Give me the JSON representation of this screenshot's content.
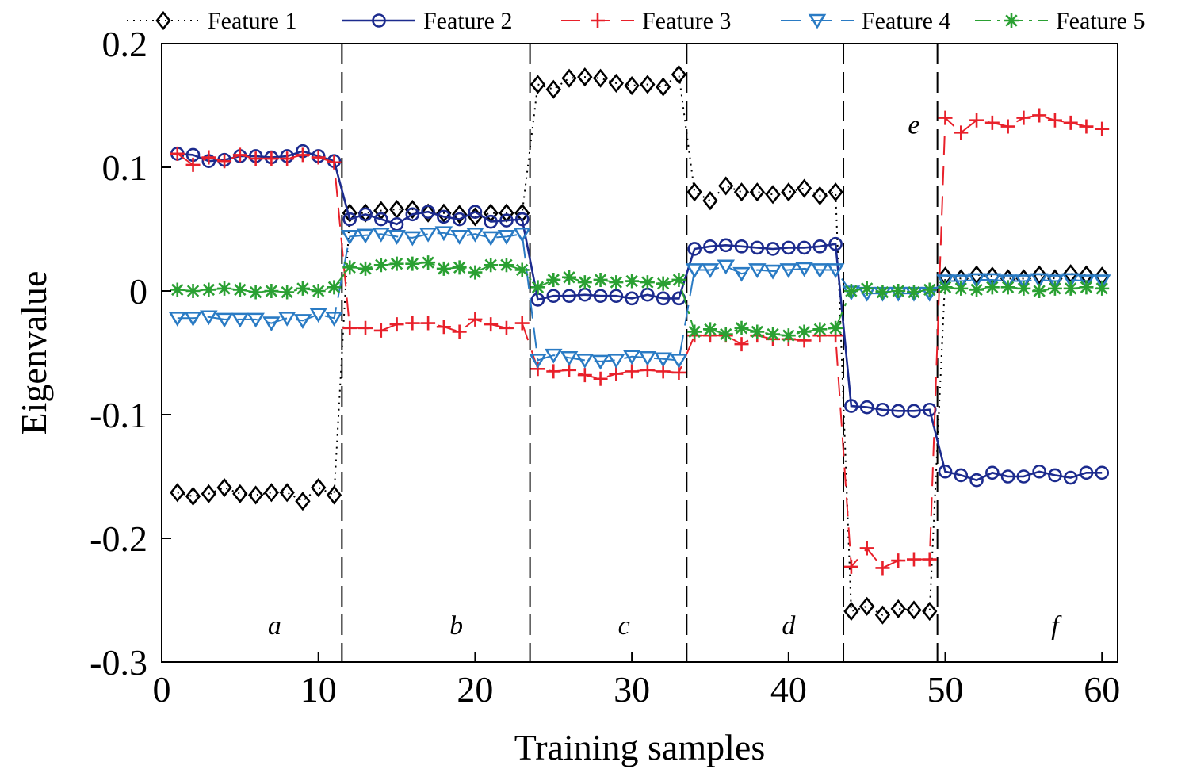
{
  "chart_data": {
    "type": "line",
    "title": "",
    "xlabel": "Training samples",
    "ylabel": "Eigenvalue",
    "xlim": [
      0,
      61
    ],
    "ylim": [
      -0.3,
      0.2
    ],
    "xticks": [
      0,
      10,
      20,
      30,
      40,
      50,
      60
    ],
    "xtick_labels": [
      "0",
      "10",
      "20",
      "30",
      "40",
      "50",
      "60"
    ],
    "yticks": [
      0.2,
      0.1,
      0,
      -0.1,
      -0.2,
      -0.3
    ],
    "ytick_labels": [
      "0.2",
      "0.1",
      "0",
      "-0.1",
      "-0.2",
      "-0.3"
    ],
    "grid": false,
    "legend_position": "top",
    "boundaries": [
      11.5,
      23.5,
      33.5,
      43.5,
      49.5
    ],
    "regions": [
      {
        "label": "a",
        "x": 7.2,
        "y": -0.27
      },
      {
        "label": "b",
        "x": 18.8,
        "y": -0.27
      },
      {
        "label": "c",
        "x": 29.5,
        "y": -0.27
      },
      {
        "label": "d",
        "x": 40,
        "y": -0.27
      },
      {
        "label": "e",
        "x": 48,
        "y": 0.135
      },
      {
        "label": "f",
        "x": 57,
        "y": -0.27
      }
    ],
    "x": [
      1,
      2,
      3,
      4,
      5,
      6,
      7,
      8,
      9,
      10,
      11,
      12,
      13,
      14,
      15,
      16,
      17,
      18,
      19,
      20,
      21,
      22,
      23,
      24,
      25,
      26,
      27,
      28,
      29,
      30,
      31,
      32,
      33,
      34,
      35,
      36,
      37,
      38,
      39,
      40,
      41,
      42,
      43,
      44,
      45,
      46,
      47,
      48,
      49,
      50,
      51,
      52,
      53,
      54,
      55,
      56,
      57,
      58,
      59,
      60
    ],
    "series": [
      {
        "name": "Feature 1",
        "color": "#000000",
        "dash": "2,6",
        "marker": "diamond",
        "values": [
          -0.163,
          -0.166,
          -0.164,
          -0.159,
          -0.164,
          -0.165,
          -0.163,
          -0.163,
          -0.17,
          -0.159,
          -0.165,
          0.063,
          0.063,
          0.065,
          0.066,
          0.066,
          0.063,
          0.063,
          0.062,
          0.06,
          0.063,
          0.063,
          0.063,
          0.167,
          0.163,
          0.172,
          0.173,
          0.172,
          0.168,
          0.166,
          0.167,
          0.165,
          0.175,
          0.08,
          0.073,
          0.085,
          0.08,
          0.08,
          0.078,
          0.08,
          0.083,
          0.077,
          0.08,
          -0.259,
          -0.255,
          -0.262,
          -0.257,
          -0.258,
          -0.259,
          0.012,
          0.01,
          0.013,
          0.012,
          0.01,
          0.01,
          0.013,
          0.01,
          0.014,
          0.013,
          0.012
        ]
      },
      {
        "name": "Feature 2",
        "color": "#1c2b8e",
        "dash": "",
        "marker": "circle",
        "values": [
          0.111,
          0.11,
          0.105,
          0.106,
          0.109,
          0.109,
          0.108,
          0.109,
          0.113,
          0.109,
          0.105,
          0.058,
          0.062,
          0.058,
          0.054,
          0.062,
          0.064,
          0.06,
          0.058,
          0.064,
          0.056,
          0.057,
          0.058,
          -0.007,
          -0.004,
          -0.004,
          -0.003,
          -0.004,
          -0.004,
          -0.006,
          -0.003,
          -0.006,
          -0.006,
          0.034,
          0.036,
          0.037,
          0.036,
          0.035,
          0.034,
          0.035,
          0.035,
          0.036,
          0.038,
          -0.093,
          -0.094,
          -0.096,
          -0.097,
          -0.097,
          -0.096,
          -0.146,
          -0.149,
          -0.153,
          -0.147,
          -0.15,
          -0.15,
          -0.146,
          -0.149,
          -0.151,
          -0.147,
          -0.147
        ]
      },
      {
        "name": "Feature 3",
        "color": "#e8202a",
        "dash": "24,14",
        "marker": "plus",
        "values": [
          0.111,
          0.102,
          0.108,
          0.105,
          0.11,
          0.107,
          0.107,
          0.107,
          0.11,
          0.108,
          0.104,
          -0.03,
          -0.03,
          -0.032,
          -0.027,
          -0.026,
          -0.026,
          -0.029,
          -0.033,
          -0.023,
          -0.027,
          -0.03,
          -0.026,
          -0.063,
          -0.065,
          -0.064,
          -0.068,
          -0.071,
          -0.067,
          -0.065,
          -0.064,
          -0.065,
          -0.066,
          -0.036,
          -0.036,
          -0.036,
          -0.043,
          -0.036,
          -0.039,
          -0.039,
          -0.04,
          -0.036,
          -0.036,
          -0.223,
          -0.208,
          -0.224,
          -0.218,
          -0.217,
          -0.217,
          0.14,
          0.128,
          0.138,
          0.136,
          0.133,
          0.14,
          0.142,
          0.138,
          0.136,
          0.133,
          0.131
        ]
      },
      {
        "name": "Feature 4",
        "color": "#2a7bc4",
        "dash": "26,12",
        "marker": "triangle-down",
        "values": [
          -0.022,
          -0.022,
          -0.021,
          -0.023,
          -0.023,
          -0.023,
          -0.026,
          -0.022,
          -0.024,
          -0.019,
          -0.022,
          0.044,
          0.045,
          0.046,
          0.044,
          0.043,
          0.046,
          0.047,
          0.044,
          0.046,
          0.043,
          0.044,
          0.046,
          -0.056,
          -0.052,
          -0.054,
          -0.056,
          -0.057,
          -0.056,
          -0.053,
          -0.054,
          -0.055,
          -0.056,
          0.017,
          0.017,
          0.02,
          0.014,
          0.017,
          0.016,
          0.017,
          0.018,
          0.017,
          0.017,
          -0.001,
          -0.002,
          -0.002,
          -0.002,
          -0.002,
          -0.002,
          0.008,
          0.008,
          0.009,
          0.009,
          0.008,
          0.008,
          0.009,
          0.008,
          0.009,
          0.008,
          0.008
        ]
      },
      {
        "name": "Feature 5",
        "color": "#2aa032",
        "dash": "20,8,4,8",
        "marker": "asterisk",
        "values": [
          0.001,
          0.0,
          0.001,
          0.002,
          0.001,
          -0.001,
          0.0,
          -0.001,
          0.002,
          0.0,
          0.003,
          0.019,
          0.018,
          0.021,
          0.022,
          0.022,
          0.023,
          0.018,
          0.019,
          0.015,
          0.021,
          0.021,
          0.017,
          0.003,
          0.009,
          0.011,
          0.007,
          0.009,
          0.007,
          0.008,
          0.007,
          0.006,
          0.009,
          -0.033,
          -0.031,
          -0.035,
          -0.03,
          -0.033,
          -0.035,
          -0.036,
          -0.033,
          -0.031,
          -0.03,
          0.0,
          0.002,
          -0.001,
          0.0,
          -0.001,
          0.001,
          0.003,
          0.002,
          0.001,
          0.003,
          0.003,
          0.002,
          0.0,
          0.002,
          0.002,
          0.003,
          0.002
        ]
      }
    ]
  }
}
